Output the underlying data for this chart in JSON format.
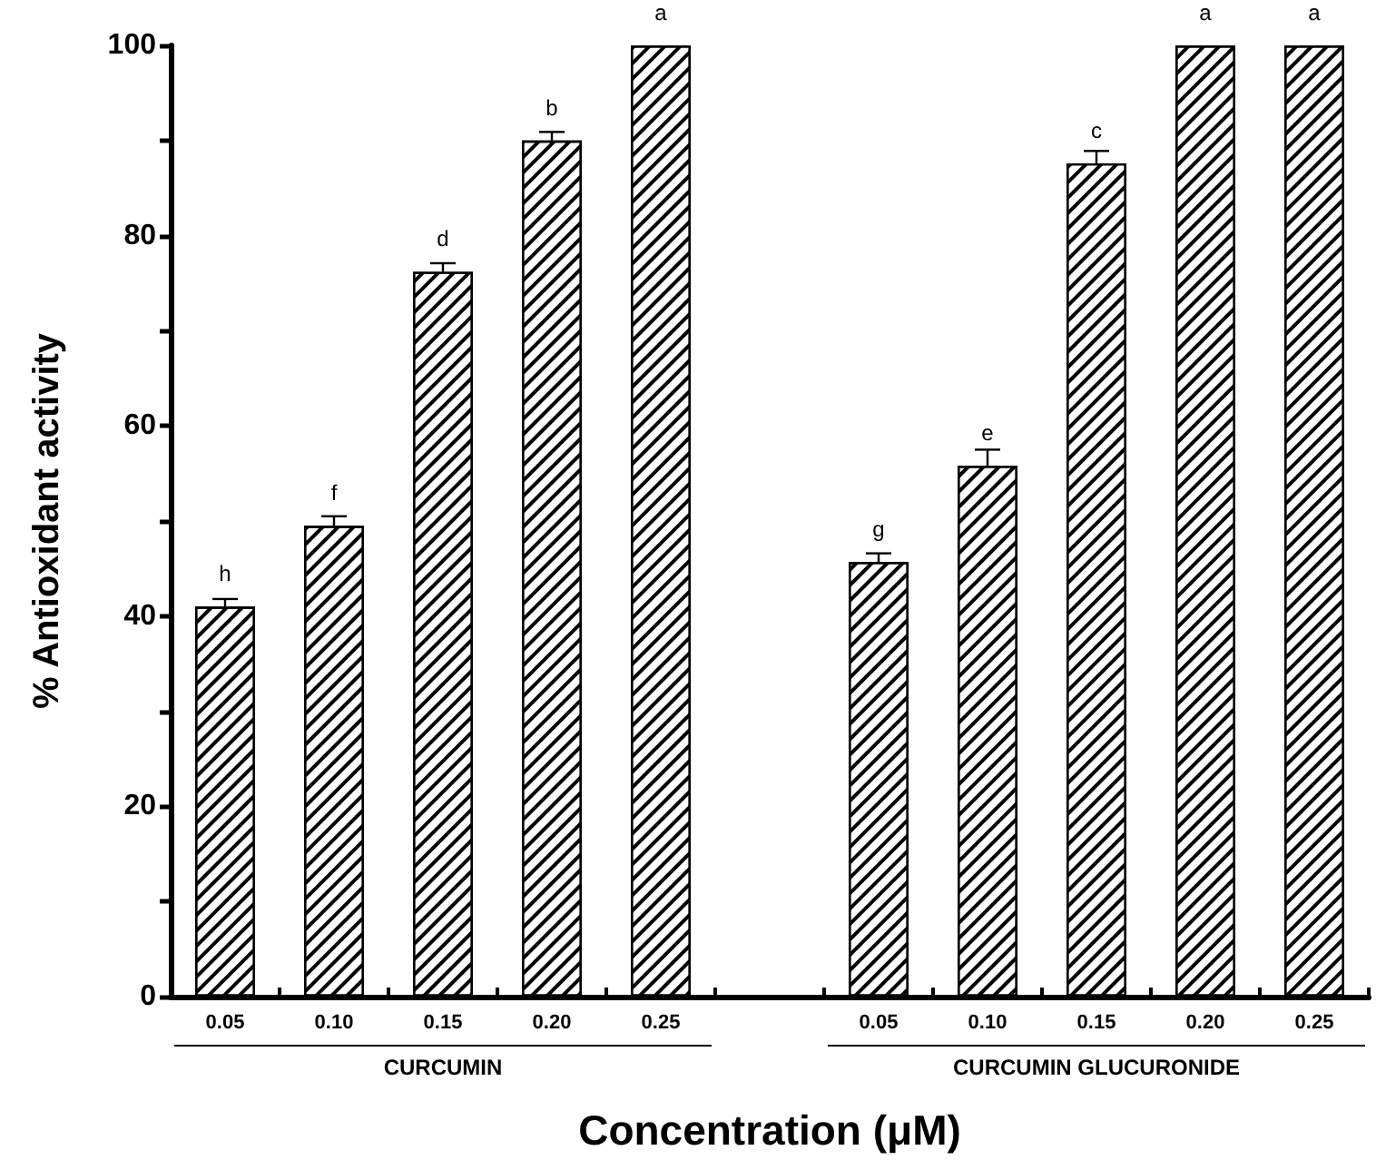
{
  "chart_data": {
    "type": "bar",
    "xlabel": "Concentration (μM)",
    "ylabel": "% Antioxidant activity",
    "categories": [
      "0.05",
      "0.10",
      "0.15",
      "0.20",
      "0.25",
      null,
      "0.05",
      "0.10",
      "0.15",
      "0.20",
      "0.25"
    ],
    "series": [
      {
        "color": "#ffffff",
        "values": [
          41.0,
          49.5,
          76.2,
          90.0,
          100,
          null,
          45.7,
          55.8,
          87.6,
          100,
          100
        ],
        "errors": [
          0.8,
          1.0,
          0.9,
          0.9,
          null,
          null,
          0.9,
          1.7,
          1.3,
          null,
          null
        ],
        "value_labels": [
          "h",
          "f",
          "d",
          "b",
          "a",
          null,
          "g",
          "e",
          "c",
          "a",
          "a"
        ]
      }
    ],
    "ylim": [
      0,
      100
    ],
    "yticks": [
      0,
      {
        "value": 10,
        "label": null
      },
      20,
      {
        "value": 30,
        "label": null
      },
      40,
      {
        "value": 50,
        "label": null
      },
      60,
      {
        "value": 70,
        "label": null
      },
      80,
      {
        "value": 90,
        "label": null
      },
      100
    ],
    "annotations": [
      "CURCUMIN",
      "CURCUMIN GLUCURONIDE"
    ]
  }
}
